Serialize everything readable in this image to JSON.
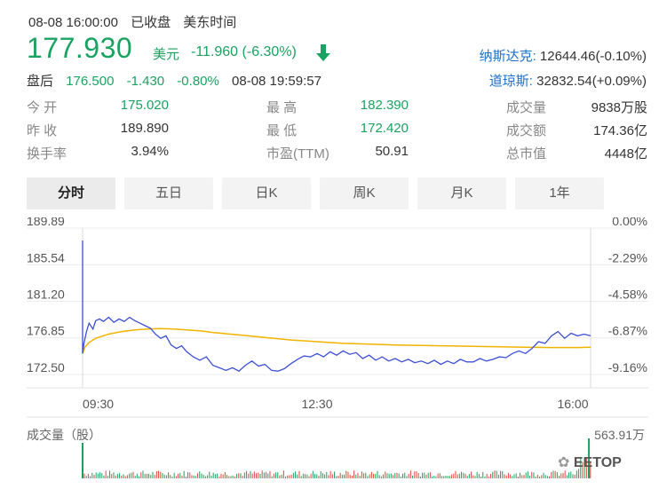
{
  "header": {
    "datetime": "08-08 16:00:00",
    "status": "已收盘",
    "timezone": "美东时间"
  },
  "quote": {
    "price": "177.930",
    "unit": "美元",
    "change": "-11.960",
    "change_pct": "(-6.30%)",
    "direction_icon": "down-arrow-icon",
    "after_hours_label": "盘后",
    "after_hours_price": "176.500",
    "after_hours_change": "-1.430",
    "after_hours_pct": "-0.80%",
    "after_hours_time": "08-08 19:59:57"
  },
  "indices": [
    {
      "name": "纳斯达克:",
      "value": "12644.46(-0.10%)"
    },
    {
      "name": "道琼斯:",
      "value": "32832.54(+0.09%)"
    }
  ],
  "stats": {
    "open_label": "今    开",
    "open": "175.020",
    "prev_label": "昨    收",
    "prev": "189.890",
    "turnover_label": "换手率",
    "turnover": "3.94%",
    "high_label": "最    高",
    "high": "182.390",
    "low_label": "最    低",
    "low": "172.420",
    "pe_label": "市盈(TTM)",
    "pe": "50.91",
    "volume_label": "成交量",
    "volume": "9838万股",
    "amount_label": "成交额",
    "amount": "174.36亿",
    "mcap_label": "总市值",
    "mcap": "4448亿"
  },
  "tabs": [
    "分时",
    "五日",
    "日K",
    "周K",
    "月K",
    "1年"
  ],
  "active_tab": "分时",
  "volume": {
    "label": "成交量（股）",
    "max": "563.91万"
  },
  "watermark": "EETOP",
  "colors": {
    "down": "#1aa260",
    "up": "#e0473b",
    "price_line": "#3b4fd8",
    "avg_line": "#f0b400"
  },
  "chart_data": {
    "type": "line",
    "y_left_ticks": [
      "189.89",
      "185.54",
      "181.20",
      "176.85",
      "172.50"
    ],
    "y_right_ticks": [
      "0.00%",
      "-2.29%",
      "-4.58%",
      "-6.87%",
      "-9.16%"
    ],
    "x_ticks": [
      "09:30",
      "12:30",
      "16:00"
    ],
    "ylim": [
      172.5,
      189.89
    ],
    "x_range_minutes": [
      0,
      390
    ],
    "series": [
      {
        "x": [
          0,
          1,
          3,
          5,
          8,
          10,
          13,
          16,
          20,
          24,
          28,
          32,
          36,
          40,
          44,
          48,
          52,
          56,
          60,
          64,
          68,
          72,
          76,
          80,
          85,
          90,
          95,
          100,
          105,
          110,
          115,
          120,
          125,
          130,
          135,
          140,
          145,
          150,
          155,
          160,
          165,
          170,
          175,
          180,
          185,
          190,
          195,
          200,
          205,
          210,
          215,
          220,
          225,
          230,
          235,
          240,
          245,
          250,
          255,
          260,
          265,
          270,
          275,
          280,
          285,
          290,
          295,
          300,
          305,
          310,
          315,
          320,
          325,
          330,
          335,
          340,
          345,
          350,
          355,
          360,
          365,
          370,
          375,
          380,
          385,
          390
        ],
        "y": [
          175.0,
          176.2,
          177.6,
          178.6,
          177.9,
          178.9,
          179.1,
          178.8,
          179.3,
          178.7,
          179.1,
          178.8,
          179.3,
          178.9,
          178.6,
          178.3,
          178.0,
          177.3,
          176.8,
          177.1,
          176.0,
          175.6,
          175.9,
          175.2,
          174.6,
          174.2,
          174.6,
          173.6,
          173.3,
          173.0,
          173.3,
          172.9,
          173.6,
          174.1,
          173.5,
          173.7,
          173.0,
          172.9,
          173.2,
          173.8,
          174.3,
          174.7,
          174.6,
          175.0,
          174.6,
          175.2,
          174.8,
          175.3,
          174.9,
          175.1,
          174.4,
          174.8,
          174.2,
          174.6,
          174.1,
          174.4,
          174.0,
          174.3,
          173.9,
          174.1,
          173.8,
          174.2,
          173.7,
          174.1,
          173.8,
          174.3,
          174.0,
          174.0,
          174.4,
          174.1,
          174.3,
          174.6,
          174.5,
          175.0,
          175.3,
          175.0,
          175.6,
          176.4,
          176.2,
          177.1,
          177.6,
          176.8,
          177.4,
          177.1,
          177.3,
          177.1
        ]
      },
      {
        "x": [
          0,
          2,
          5,
          10,
          20,
          30,
          40,
          50,
          60,
          70,
          80,
          90,
          100,
          120,
          140,
          160,
          180,
          200,
          220,
          240,
          260,
          280,
          300,
          320,
          340,
          360,
          380,
          390
        ],
        "y": [
          175.0,
          175.8,
          176.3,
          176.8,
          177.3,
          177.6,
          177.8,
          177.9,
          177.95,
          177.9,
          177.8,
          177.7,
          177.5,
          177.2,
          176.9,
          176.6,
          176.4,
          176.2,
          176.1,
          176.0,
          175.95,
          175.9,
          175.85,
          175.8,
          175.75,
          175.7,
          175.7,
          175.75
        ]
      }
    ]
  }
}
